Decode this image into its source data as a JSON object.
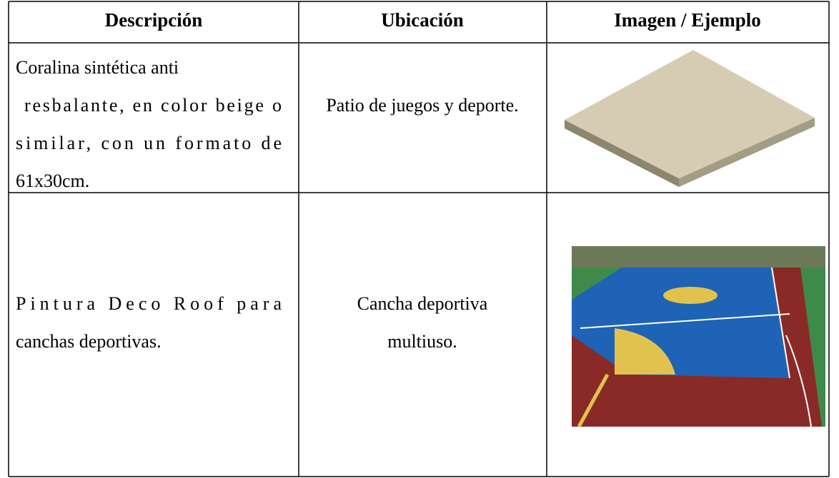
{
  "header": {
    "columns": [
      "Descripción",
      "Ubicación",
      "Imagen / Ejemplo"
    ]
  },
  "rows": [
    {
      "description": [
        "Coralina sintética anti",
        "resbalante, en color beige o",
        "similar, con un formato de",
        "61x30cm."
      ],
      "location": [
        "Patio de juegos y deporte."
      ]
    },
    {
      "description": [
        "Pintura  Deco  Roof  para",
        "canchas deportivas."
      ],
      "location": [
        "Cancha deportiva",
        "multiuso."
      ]
    }
  ]
}
